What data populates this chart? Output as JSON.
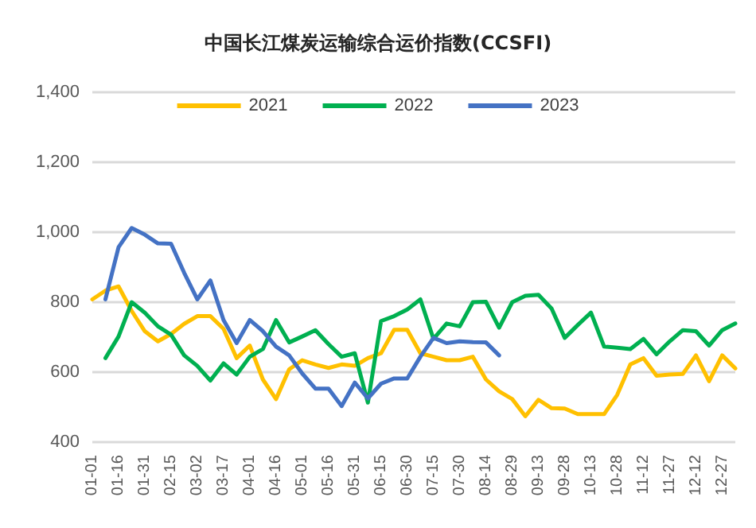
{
  "chart_data": {
    "type": "line",
    "title": "中国长江煤炭运输综合运价指数(CCSFI)",
    "categories": [
      "01-01",
      null,
      "01-16",
      null,
      "01-31",
      null,
      "02-15",
      null,
      "03-02",
      null,
      "03-17",
      null,
      "04-01",
      null,
      "04-16",
      null,
      "05-01",
      null,
      "05-16",
      null,
      "05-31",
      null,
      "06-15",
      null,
      "06-30",
      null,
      "07-15",
      null,
      "07-30",
      null,
      "08-14",
      null,
      "08-29",
      null,
      "09-13",
      null,
      "09-28",
      null,
      "10-13",
      null,
      "10-28",
      null,
      "11-12",
      null,
      "11-27",
      null,
      "12-12",
      null,
      "12-27",
      null
    ],
    "series": [
      {
        "name": "2021",
        "color": "#ffc000",
        "values": [
          808,
          833,
          845,
          775,
          717,
          688,
          709,
          738,
          760,
          760,
          724,
          640,
          676,
          579,
          523,
          608,
          634,
          622,
          612,
          622,
          618,
          640,
          654,
          721,
          721,
          654,
          644,
          634,
          634,
          644,
          579,
          545,
          523,
          474,
          521,
          497,
          496,
          480,
          480,
          480,
          535,
          622,
          640,
          590,
          593,
          595,
          648,
          574,
          648,
          611
        ]
      },
      {
        "name": "2022",
        "color": "#00b050",
        "values": [
          null,
          640,
          702,
          800,
          770,
          731,
          707,
          648,
          618,
          576,
          625,
          593,
          644,
          666,
          749,
          685,
          702,
          720,
          680,
          644,
          654,
          513,
          746,
          760,
          779,
          808,
          695,
          739,
          731,
          800,
          801,
          727,
          800,
          818,
          821,
          782,
          698,
          735,
          770,
          673,
          670,
          666,
          695,
          651,
          688,
          720,
          717,
          676,
          720,
          739
        ]
      },
      {
        "name": "2023",
        "color": "#4472c4",
        "values": [
          null,
          808,
          957,
          1012,
          993,
          968,
          967,
          884,
          808,
          862,
          749,
          683,
          749,
          717,
          673,
          648,
          596,
          553,
          553,
          503,
          570,
          525,
          567,
          582,
          582,
          644,
          698,
          683,
          688,
          686,
          685,
          648,
          null,
          null,
          null,
          null,
          null,
          null,
          null,
          null,
          null,
          null,
          null,
          null,
          null,
          null,
          null,
          null,
          null,
          null
        ]
      }
    ],
    "ylim": [
      400,
      1400
    ],
    "yticks": [
      400,
      600,
      800,
      {
        "value": 1000,
        "label": "1,000"
      },
      {
        "value": 1200,
        "label": "1,200"
      },
      {
        "value": 1400,
        "label": "1,400"
      }
    ],
    "grid": "y",
    "legend": "top",
    "marker": "none"
  }
}
